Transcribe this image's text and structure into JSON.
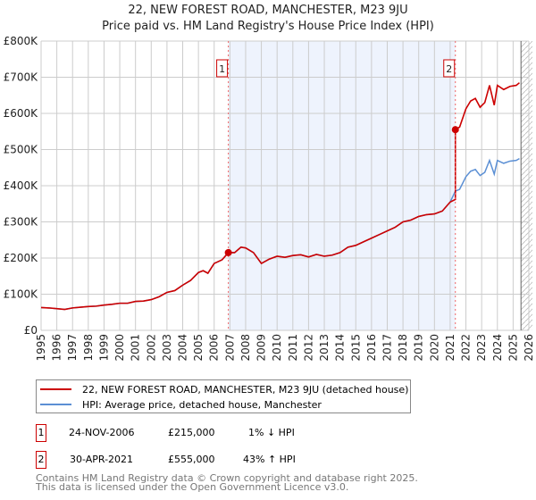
{
  "title": "22, NEW FOREST ROAD, MANCHESTER, M23 9JU",
  "subtitle": "Price paid vs. HM Land Registry's House Price Index (HPI)",
  "chart_data": {
    "type": "line",
    "title": "22, NEW FOREST ROAD, MANCHESTER, M23 9JU",
    "xlim": [
      1995,
      2026
    ],
    "ylim": [
      0,
      800000
    ],
    "yticks": [
      0,
      100000,
      200000,
      300000,
      400000,
      500000,
      600000,
      700000,
      800000
    ],
    "ytick_labels": [
      "£0",
      "£100K",
      "£200K",
      "£300K",
      "£400K",
      "£500K",
      "£600K",
      "£700K",
      "£800K"
    ],
    "xticks": [
      "1995",
      "1996",
      "1997",
      "1998",
      "1999",
      "2000",
      "2001",
      "2002",
      "2003",
      "2004",
      "2005",
      "2006",
      "2007",
      "2008",
      "2009",
      "2010",
      "2011",
      "2012",
      "2013",
      "2014",
      "2015",
      "2016",
      "2017",
      "2018",
      "2019",
      "2020",
      "2021",
      "2022",
      "2023",
      "2024",
      "2025",
      "2026"
    ],
    "shaded_period": [
      2006.9,
      2021.33
    ],
    "forecast_from": 2025.5,
    "hpi": [
      [
        1995,
        63
      ],
      [
        1995.5,
        62
      ],
      [
        1996,
        60
      ],
      [
        1996.5,
        58
      ],
      [
        1997,
        62
      ],
      [
        1997.5,
        64
      ],
      [
        1998,
        66
      ],
      [
        1998.5,
        67
      ],
      [
        1999,
        70
      ],
      [
        1999.5,
        72
      ],
      [
        2000,
        75
      ],
      [
        2000.5,
        75
      ],
      [
        2001,
        80
      ],
      [
        2001.5,
        81
      ],
      [
        2002,
        85
      ],
      [
        2002.5,
        93
      ],
      [
        2003,
        105
      ],
      [
        2003.5,
        110
      ],
      [
        2004,
        125
      ],
      [
        2004.5,
        138
      ],
      [
        2005,
        160
      ],
      [
        2005.3,
        165
      ],
      [
        2005.6,
        158
      ],
      [
        2006,
        185
      ],
      [
        2006.5,
        195
      ],
      [
        2006.9,
        215
      ],
      [
        2007.3,
        215
      ],
      [
        2007.7,
        230
      ],
      [
        2008,
        228
      ],
      [
        2008.5,
        215
      ],
      [
        2009,
        185
      ],
      [
        2009.5,
        197
      ],
      [
        2010,
        205
      ],
      [
        2010.5,
        202
      ],
      [
        2011,
        207
      ],
      [
        2011.5,
        209
      ],
      [
        2012,
        203
      ],
      [
        2012.5,
        210
      ],
      [
        2013,
        205
      ],
      [
        2013.5,
        208
      ],
      [
        2014,
        215
      ],
      [
        2014.5,
        230
      ],
      [
        2015,
        235
      ],
      [
        2015.5,
        245
      ],
      [
        2016,
        255
      ],
      [
        2016.5,
        265
      ],
      [
        2017,
        275
      ],
      [
        2017.5,
        285
      ],
      [
        2018,
        300
      ],
      [
        2018.5,
        305
      ],
      [
        2019,
        315
      ],
      [
        2019.5,
        320
      ],
      [
        2020,
        322
      ],
      [
        2020.5,
        330
      ],
      [
        2021,
        355
      ],
      [
        2021.33,
        385
      ],
      [
        2021.6,
        390
      ],
      [
        2022,
        425
      ],
      [
        2022.3,
        440
      ],
      [
        2022.6,
        445
      ],
      [
        2022.9,
        428
      ],
      [
        2023.2,
        437
      ],
      [
        2023.5,
        470
      ],
      [
        2023.8,
        432
      ],
      [
        2024,
        470
      ],
      [
        2024.4,
        462
      ],
      [
        2024.8,
        468
      ],
      [
        2025.2,
        470
      ],
      [
        2025.4,
        475
      ]
    ],
    "sales": [
      {
        "x": 2006.9,
        "y": 215000,
        "label": "1"
      },
      {
        "x": 2021.33,
        "y": 555000,
        "label": "2"
      }
    ],
    "series": [
      {
        "name": "22, NEW FOREST ROAD, MANCHESTER, M23 9JU (detached house)",
        "color": "#cc0000"
      },
      {
        "name": "HPI: Average price, detached house, Manchester",
        "color": "#5b8fd4"
      }
    ]
  },
  "transactions": [
    {
      "num": "1",
      "date": "24-NOV-2006",
      "price": "£215,000",
      "hpi": "1% ↓ HPI"
    },
    {
      "num": "2",
      "date": "30-APR-2021",
      "price": "£555,000",
      "hpi": "43% ↑ HPI"
    }
  ],
  "footer1": "Contains HM Land Registry data © Crown copyright and database right 2025.",
  "footer2": "This data is licensed under the Open Government Licence v3.0."
}
